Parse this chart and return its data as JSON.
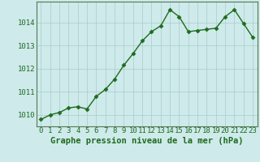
{
  "x": [
    0,
    1,
    2,
    3,
    4,
    5,
    6,
    7,
    8,
    9,
    10,
    11,
    12,
    13,
    14,
    15,
    16,
    17,
    18,
    19,
    20,
    21,
    22,
    23
  ],
  "y": [
    1009.8,
    1010.0,
    1010.1,
    1010.3,
    1010.35,
    1010.25,
    1010.8,
    1011.1,
    1011.55,
    1012.15,
    1012.65,
    1013.2,
    1013.6,
    1013.85,
    1014.55,
    1014.25,
    1013.6,
    1013.65,
    1013.7,
    1013.75,
    1014.25,
    1014.55,
    1013.95,
    1013.35
  ],
  "line_color": "#1e6b1e",
  "marker": "D",
  "marker_size": 2.5,
  "bg_color": "#ceeaea",
  "grid_color": "#aacccc",
  "xlabel": "Graphe pression niveau de la mer (hPa)",
  "ylim_min": 1009.5,
  "ylim_max": 1014.9,
  "yticks": [
    1010,
    1011,
    1012,
    1013,
    1014
  ],
  "xticks": [
    0,
    1,
    2,
    3,
    4,
    5,
    6,
    7,
    8,
    9,
    10,
    11,
    12,
    13,
    14,
    15,
    16,
    17,
    18,
    19,
    20,
    21,
    22,
    23
  ],
  "tick_label_color": "#1e6b1e",
  "xlabel_color": "#1e6b1e",
  "xlabel_fontsize": 7.5,
  "tick_fontsize": 6.5,
  "line_width": 1.0,
  "spine_color": "#557755"
}
